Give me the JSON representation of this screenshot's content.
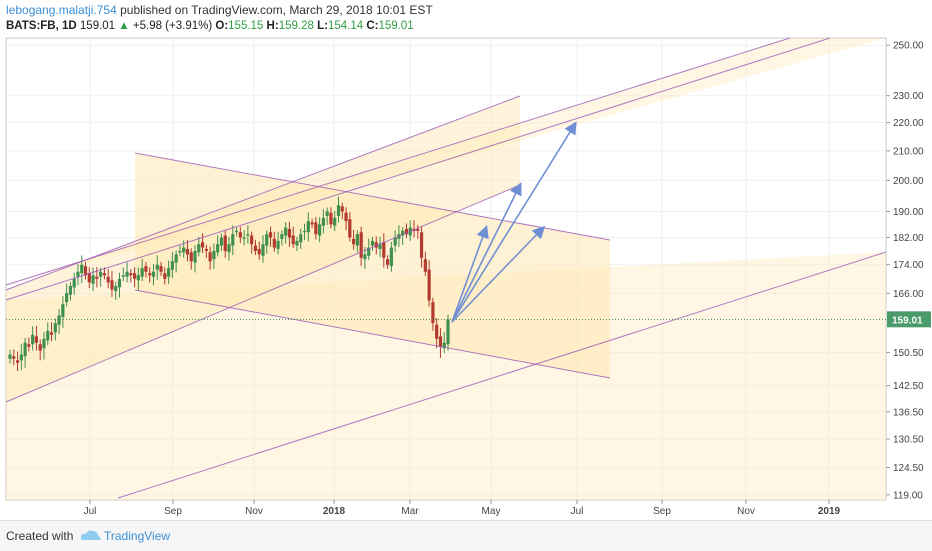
{
  "header": {
    "author": "lebogang.malatji.754",
    "published_text": "published on TradingView.com, March 29, 2018 10:01 EST"
  },
  "quote": {
    "symbol": "BATS:FB, 1D",
    "price": "159.01",
    "change": "+5.98 (+3.91%)",
    "open_label": "O:",
    "open": "155.15",
    "high_label": "H:",
    "high": "159.28",
    "low_label": "L:",
    "low": "154.14",
    "close_label": "C:",
    "close": "159.01"
  },
  "footer": {
    "created_with": "Created with",
    "brand": "TradingView"
  },
  "colors": {
    "up": "#3f8f4f",
    "down": "#b23a2e",
    "channel": "#9b59b6",
    "zone_fill": "#ffe7b0",
    "arrow": "#6f8fd4",
    "last_price_tag": "#4a9a6a"
  },
  "chart_data": {
    "type": "candlestick",
    "symbol": "BATS:FB",
    "interval": "1D",
    "x_ticks": [
      "Jul",
      "Sep",
      "Nov",
      "2018",
      "Mar",
      "May",
      "Jul",
      "Sep",
      "Nov",
      "2019"
    ],
    "y_ticks": [
      119.0,
      124.5,
      130.5,
      136.5,
      142.5,
      150.5,
      166.0,
      174.0,
      182.0,
      190.0,
      200.0,
      210.0,
      220.0,
      230.0,
      250.0
    ],
    "y_tick_labels": [
      "119.00",
      "124.50",
      "130.50",
      "136.50",
      "142.50",
      "150.50",
      "166.00",
      "174.00",
      "182.00",
      "190.00",
      "200.00",
      "210.00",
      "220.00",
      "230.00",
      "250.00"
    ],
    "y_scale": "log",
    "ylim": [
      118,
      253
    ],
    "last_price": 159.01,
    "last_price_label": "159.01",
    "price_path_close": [
      150,
      149,
      148,
      150,
      153,
      152,
      155,
      153,
      151,
      154,
      156,
      155,
      158,
      160,
      163,
      166,
      168,
      170,
      172,
      174,
      171,
      169,
      171,
      170,
      172,
      171,
      169,
      167,
      168,
      170,
      171,
      172,
      171,
      170,
      171,
      173,
      172,
      171,
      172,
      174,
      172,
      170,
      173,
      175,
      177,
      178,
      179,
      177,
      175,
      178,
      180,
      179,
      178,
      175,
      178,
      180,
      182,
      178,
      180,
      183,
      184,
      182,
      182,
      183,
      180,
      178,
      177,
      180,
      183,
      182,
      179,
      181,
      183,
      185,
      182,
      180,
      181,
      183,
      184,
      187,
      186,
      183,
      186,
      188,
      190,
      186,
      188,
      192,
      190,
      187,
      182,
      180,
      183,
      176,
      177,
      179,
      181,
      179,
      180,
      176,
      174,
      179,
      182,
      183,
      184,
      183,
      185,
      184,
      184,
      176,
      172,
      164,
      158,
      154,
      152,
      153,
      159
    ]
  }
}
